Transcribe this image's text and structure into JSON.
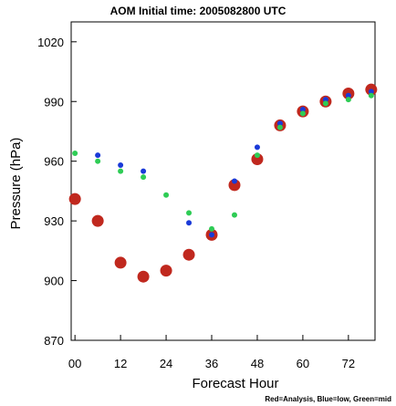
{
  "chart_data": {
    "type": "scatter",
    "title": "AOM Initial time: 2005082800 UTC",
    "xlabel": "Forecast Hour",
    "ylabel": "Pressure (hPa)",
    "note": "Red=Analysis, Blue=low, Green=mid",
    "xlim": [
      -1,
      79
    ],
    "ylim": [
      870,
      1030
    ],
    "x_ticks": [
      0,
      12,
      24,
      36,
      48,
      60,
      72
    ],
    "x_tick_labels": [
      "00",
      "12",
      "24",
      "36",
      "48",
      "60",
      "72"
    ],
    "y_ticks": [
      870,
      900,
      930,
      960,
      990,
      1020
    ],
    "y_tick_labels": [
      "870",
      "900",
      "930",
      "960",
      "990",
      "1020"
    ],
    "grid": false,
    "series": [
      {
        "name": "Analysis",
        "color": "#c0281e",
        "marker": "large-dot",
        "x": [
          0,
          6,
          12,
          18,
          24,
          30,
          36,
          42,
          48,
          54,
          60,
          66,
          72,
          78
        ],
        "y": [
          941,
          930,
          909,
          902,
          905,
          913,
          923,
          948,
          961,
          978,
          985,
          990,
          994,
          996
        ]
      },
      {
        "name": "low",
        "color": "#1a3ad8",
        "marker": "small-dot",
        "x": [
          6,
          12,
          18,
          30,
          36,
          42,
          48,
          54,
          60,
          66,
          72,
          78
        ],
        "y": [
          963,
          958,
          955,
          929,
          923,
          950,
          967,
          979,
          986,
          991,
          993,
          995
        ]
      },
      {
        "name": "mid",
        "color": "#2ecc55",
        "marker": "small-dot",
        "x": [
          0,
          6,
          12,
          18,
          24,
          30,
          36,
          42,
          48,
          54,
          60,
          66,
          72,
          78
        ],
        "y": [
          964,
          960,
          955,
          952,
          943,
          934,
          926,
          933,
          963,
          977,
          984,
          989,
          991,
          993
        ]
      }
    ]
  }
}
